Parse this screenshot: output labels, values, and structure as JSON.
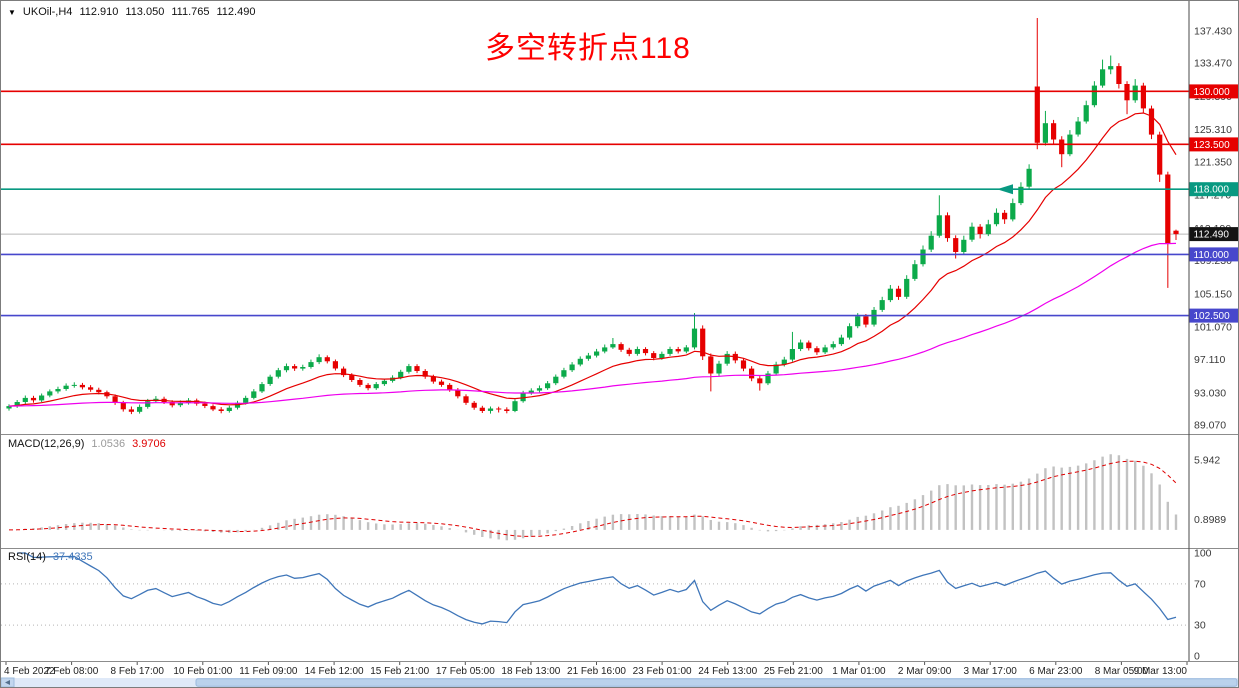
{
  "header": {
    "collapse_icon": "▼",
    "symbol_period": "UKOil-,H4",
    "open": "112.910",
    "high": "113.050",
    "low": "111.765",
    "close": "112.490"
  },
  "annotation": {
    "text": "多空转折点118",
    "color": "#fe0000"
  },
  "indicators": {
    "macd": {
      "name": "MACD(12,26,9)",
      "value": "1.0536",
      "signal_value": "3.9706",
      "fast": 12,
      "slow": 26,
      "smooth": 9,
      "axis_labels": [
        "5.942",
        "0.8989"
      ],
      "histogram_color": "#c2c2c2",
      "signal_color": "#df0000",
      "range": [
        -1.2,
        7.8
      ]
    },
    "rsi": {
      "name": "RSI(14)",
      "value": "37.4335",
      "period": 14,
      "axis_labels": [
        "100",
        "70",
        "30",
        "0"
      ],
      "levels": [
        70,
        30
      ],
      "line_color": "#3f76b9",
      "range": [
        0,
        100
      ]
    }
  },
  "chart_data": {
    "type": "candlestick",
    "symbol": "UKOil-",
    "timeframe": "H4",
    "title": "多空转折点118",
    "ylim": [
      88.1,
      140.1
    ],
    "bull_color": "#0caa4a",
    "bear_color": "#e60000",
    "price_axis_labels": [
      "137.430",
      "133.470",
      "129.390",
      "125.310",
      "121.350",
      "117.270",
      "113.190",
      "109.230",
      "105.150",
      "101.070",
      "97.110",
      "93.030",
      "89.070"
    ],
    "time_axis_labels": [
      "4 Feb 2022",
      "7 Feb 08:00",
      "8 Feb 17:00",
      "10 Feb 01:00",
      "11 Feb 09:00",
      "14 Feb 12:00",
      "15 Feb 21:00",
      "17 Feb 05:00",
      "18 Feb 13:00",
      "21 Feb 16:00",
      "23 Feb 01:00",
      "24 Feb 13:00",
      "25 Feb 21:00",
      "1 Mar 01:00",
      "2 Mar 09:00",
      "3 Mar 17:00",
      "6 Mar 23:00",
      "8 Mar 05:00",
      "9 Mar 13:00"
    ],
    "moving_averages": [
      {
        "name": "fast-ma",
        "period": 13,
        "color": "#e60000"
      },
      {
        "name": "slow-ma",
        "period": 75,
        "color": "#ee00ee"
      }
    ],
    "levels": [
      {
        "price": 130.0,
        "label": "130.000",
        "color": "#e60000",
        "arrow": false
      },
      {
        "price": 123.5,
        "label": "123.500",
        "color": "#e60000",
        "arrow": false
      },
      {
        "price": 118.0,
        "label": "118.000",
        "color": "#089981",
        "arrow": true
      },
      {
        "price": 110.0,
        "label": "110.000",
        "color": "#4747cc",
        "arrow": false
      },
      {
        "price": 102.5,
        "label": "102.500",
        "color": "#4747cc",
        "arrow": false
      }
    ],
    "current_price": {
      "value": 112.49,
      "label": "112.490",
      "badge_color": "#141414"
    },
    "candles": [
      [
        91.1,
        91.62,
        90.85,
        91.4
      ],
      [
        91.4,
        92.15,
        91.18,
        91.9
      ],
      [
        91.9,
        92.7,
        91.65,
        92.4
      ],
      [
        92.4,
        92.66,
        91.82,
        92.1
      ],
      [
        92.1,
        92.95,
        91.9,
        92.7
      ],
      [
        92.7,
        93.45,
        92.48,
        93.2
      ],
      [
        93.2,
        93.78,
        92.95,
        93.5
      ],
      [
        93.5,
        94.18,
        93.28,
        93.9
      ],
      [
        93.9,
        94.32,
        93.66,
        94.0
      ],
      [
        94.0,
        94.25,
        93.45,
        93.7
      ],
      [
        93.7,
        93.98,
        93.15,
        93.4
      ],
      [
        93.4,
        93.66,
        92.85,
        93.1
      ],
      [
        93.1,
        93.3,
        92.32,
        92.6
      ],
      [
        92.6,
        92.84,
        91.55,
        91.8
      ],
      [
        91.8,
        92.05,
        90.72,
        91.0
      ],
      [
        91.0,
        91.35,
        90.42,
        90.7
      ],
      [
        90.7,
        91.6,
        90.48,
        91.3
      ],
      [
        91.3,
        92.28,
        91.08,
        92.0
      ],
      [
        92.0,
        92.62,
        91.78,
        92.3
      ],
      [
        92.3,
        92.55,
        91.66,
        91.9
      ],
      [
        91.9,
        92.12,
        91.24,
        91.5
      ],
      [
        91.5,
        92.1,
        91.28,
        91.8
      ],
      [
        91.8,
        92.38,
        91.58,
        92.1
      ],
      [
        92.1,
        92.32,
        91.45,
        91.7
      ],
      [
        91.7,
        91.95,
        91.15,
        91.4
      ],
      [
        91.4,
        91.62,
        90.78,
        91.0
      ],
      [
        91.0,
        91.28,
        90.52,
        90.8
      ],
      [
        90.8,
        91.45,
        90.6,
        91.2
      ],
      [
        91.2,
        92.05,
        90.98,
        91.8
      ],
      [
        91.8,
        92.68,
        91.58,
        92.4
      ],
      [
        92.4,
        93.48,
        92.22,
        93.2
      ],
      [
        93.2,
        94.35,
        93.0,
        94.1
      ],
      [
        94.1,
        95.25,
        93.88,
        95.0
      ],
      [
        95.0,
        96.08,
        94.78,
        95.8
      ],
      [
        95.8,
        96.62,
        95.55,
        96.3
      ],
      [
        96.3,
        96.55,
        95.72,
        96.0
      ],
      [
        96.0,
        96.48,
        95.74,
        96.2
      ],
      [
        96.2,
        97.1,
        95.98,
        96.8
      ],
      [
        96.8,
        97.75,
        96.55,
        97.4
      ],
      [
        97.4,
        97.62,
        96.64,
        96.9
      ],
      [
        96.9,
        97.12,
        95.76,
        96.0
      ],
      [
        96.0,
        96.25,
        94.95,
        95.2
      ],
      [
        95.2,
        95.44,
        94.35,
        94.6
      ],
      [
        94.6,
        94.85,
        93.75,
        94.0
      ],
      [
        94.0,
        94.22,
        93.34,
        93.6
      ],
      [
        93.6,
        94.35,
        93.38,
        94.1
      ],
      [
        94.1,
        94.76,
        93.88,
        94.5
      ],
      [
        94.5,
        95.18,
        94.28,
        94.9
      ],
      [
        94.9,
        95.85,
        94.68,
        95.6
      ],
      [
        95.6,
        96.58,
        95.38,
        96.3
      ],
      [
        96.3,
        96.54,
        95.45,
        95.7
      ],
      [
        95.7,
        95.94,
        94.75,
        95.0
      ],
      [
        95.0,
        95.25,
        94.15,
        94.4
      ],
      [
        94.4,
        94.65,
        93.76,
        94.0
      ],
      [
        94.0,
        94.22,
        93.15,
        93.4
      ],
      [
        93.4,
        93.62,
        92.34,
        92.6
      ],
      [
        92.6,
        92.85,
        91.55,
        91.8
      ],
      [
        91.8,
        92.02,
        90.95,
        91.2
      ],
      [
        91.2,
        91.44,
        90.55,
        90.8
      ],
      [
        90.8,
        91.35,
        90.48,
        91.1
      ],
      [
        91.1,
        91.32,
        90.62,
        91.0
      ],
      [
        91.0,
        91.25,
        90.52,
        90.8
      ],
      [
        90.8,
        92.25,
        90.65,
        92.0
      ],
      [
        92.0,
        93.28,
        91.82,
        93.0
      ],
      [
        93.0,
        93.58,
        92.78,
        93.3
      ],
      [
        93.3,
        93.92,
        93.08,
        93.6
      ],
      [
        93.6,
        94.48,
        93.38,
        94.2
      ],
      [
        94.2,
        95.28,
        93.98,
        95.0
      ],
      [
        95.0,
        96.1,
        94.8,
        95.8
      ],
      [
        95.8,
        96.8,
        95.58,
        96.5
      ],
      [
        96.5,
        97.5,
        96.28,
        97.2
      ],
      [
        97.2,
        97.92,
        96.95,
        97.6
      ],
      [
        97.6,
        98.42,
        97.36,
        98.1
      ],
      [
        98.1,
        98.95,
        97.88,
        98.6
      ],
      [
        98.6,
        99.75,
        98.42,
        99.0
      ],
      [
        99.0,
        99.22,
        98.05,
        98.3
      ],
      [
        98.3,
        98.55,
        97.52,
        97.8
      ],
      [
        97.8,
        98.7,
        97.58,
        98.4
      ],
      [
        98.4,
        98.62,
        97.62,
        97.9
      ],
      [
        97.9,
        98.15,
        97.02,
        97.3
      ],
      [
        97.3,
        98.08,
        97.08,
        97.8
      ],
      [
        97.8,
        98.68,
        97.55,
        98.4
      ],
      [
        98.4,
        98.66,
        97.85,
        98.1
      ],
      [
        98.1,
        98.88,
        97.88,
        98.6
      ],
      [
        98.6,
        102.8,
        98.35,
        100.9
      ],
      [
        100.9,
        101.3,
        97.05,
        97.5
      ],
      [
        97.5,
        97.85,
        93.2,
        95.4
      ],
      [
        95.4,
        96.95,
        95.1,
        96.6
      ],
      [
        96.6,
        98.15,
        96.35,
        97.8
      ],
      [
        97.8,
        98.1,
        96.65,
        97.0
      ],
      [
        97.0,
        97.28,
        95.68,
        96.0
      ],
      [
        96.0,
        96.3,
        94.45,
        94.8
      ],
      [
        94.8,
        95.08,
        93.3,
        94.2
      ],
      [
        94.2,
        95.72,
        93.98,
        95.4
      ],
      [
        95.4,
        96.85,
        95.18,
        96.5
      ],
      [
        96.5,
        97.45,
        96.25,
        97.1
      ],
      [
        97.1,
        100.5,
        96.85,
        98.4
      ],
      [
        98.4,
        99.55,
        98.15,
        99.2
      ],
      [
        99.2,
        99.45,
        98.22,
        98.5
      ],
      [
        98.5,
        98.75,
        97.68,
        98.0
      ],
      [
        98.0,
        98.92,
        97.78,
        98.6
      ],
      [
        98.6,
        99.35,
        98.35,
        99.0
      ],
      [
        99.0,
        100.15,
        98.78,
        99.8
      ],
      [
        99.8,
        101.55,
        99.55,
        101.2
      ],
      [
        101.2,
        102.8,
        100.95,
        102.4
      ],
      [
        102.4,
        102.7,
        101.05,
        101.4
      ],
      [
        101.4,
        103.55,
        101.15,
        103.2
      ],
      [
        103.2,
        104.8,
        102.95,
        104.4
      ],
      [
        104.4,
        106.25,
        104.15,
        105.8
      ],
      [
        105.8,
        106.15,
        104.42,
        104.8
      ],
      [
        104.8,
        107.45,
        104.55,
        107.0
      ],
      [
        107.0,
        109.3,
        106.75,
        108.8
      ],
      [
        108.8,
        111.1,
        108.52,
        110.6
      ],
      [
        110.6,
        112.85,
        110.3,
        112.3
      ],
      [
        112.3,
        117.25,
        112.05,
        114.8
      ],
      [
        114.8,
        115.15,
        111.55,
        112.0
      ],
      [
        112.0,
        112.35,
        109.5,
        110.3
      ],
      [
        110.3,
        112.3,
        110.05,
        111.8
      ],
      [
        111.8,
        113.9,
        111.55,
        113.4
      ],
      [
        113.4,
        113.72,
        111.95,
        112.5
      ],
      [
        112.5,
        114.25,
        112.25,
        113.7
      ],
      [
        113.7,
        115.65,
        113.45,
        115.1
      ],
      [
        115.1,
        115.45,
        113.75,
        114.3
      ],
      [
        114.3,
        116.85,
        114.05,
        116.3
      ],
      [
        116.3,
        118.85,
        116.05,
        118.3
      ],
      [
        118.3,
        121.05,
        118.05,
        120.5
      ],
      [
        130.6,
        139.0,
        122.9,
        123.7
      ],
      [
        123.7,
        127.6,
        123.35,
        126.1
      ],
      [
        126.1,
        126.5,
        123.55,
        124.1
      ],
      [
        124.1,
        124.5,
        120.7,
        122.3
      ],
      [
        122.3,
        125.25,
        122.05,
        124.7
      ],
      [
        124.7,
        126.85,
        124.45,
        126.3
      ],
      [
        126.3,
        128.85,
        126.05,
        128.3
      ],
      [
        128.3,
        131.25,
        128.05,
        130.7
      ],
      [
        130.7,
        133.9,
        130.45,
        132.7
      ],
      [
        132.7,
        134.4,
        132.1,
        133.1
      ],
      [
        133.1,
        133.45,
        130.35,
        130.9
      ],
      [
        130.9,
        131.25,
        127.2,
        128.9
      ],
      [
        128.9,
        131.5,
        128.6,
        130.7
      ],
      [
        130.7,
        131.05,
        127.35,
        127.9
      ],
      [
        127.9,
        128.25,
        124.15,
        124.7
      ],
      [
        124.7,
        125.05,
        118.9,
        119.8
      ],
      [
        119.8,
        120.15,
        105.9,
        111.3
      ],
      [
        112.91,
        113.05,
        111.765,
        112.49
      ]
    ]
  }
}
